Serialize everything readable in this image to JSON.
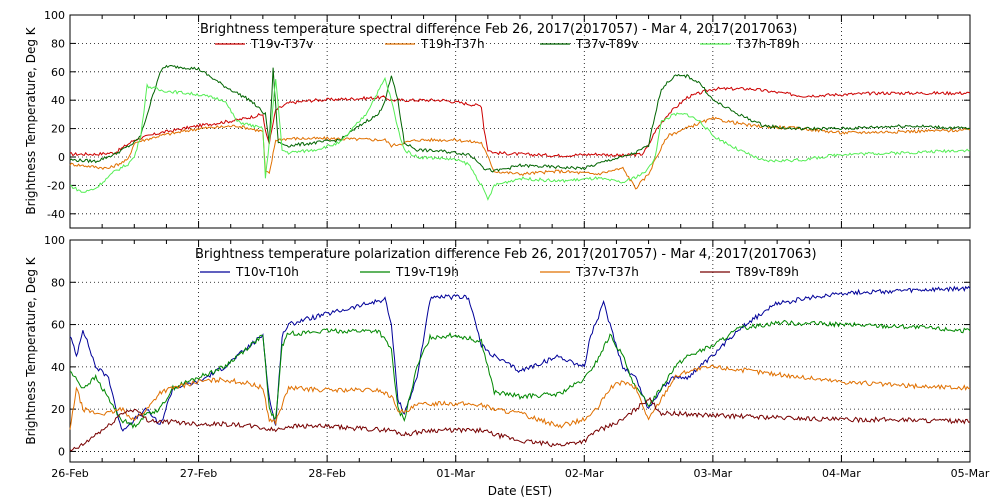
{
  "chart_data": [
    {
      "type": "line",
      "title": "Brightness temperature spectral difference     Feb 26, 2017(2017057) - Mar  4, 2017(2017063)",
      "ylabel": "Brightness Temperature, Deg K",
      "xlabel": "",
      "ylim": [
        -50,
        100
      ],
      "yticks": [
        -40,
        -20,
        0,
        20,
        40,
        60,
        80,
        100
      ],
      "xlim": [
        0,
        7
      ],
      "grid": true,
      "legend": "top",
      "series": [
        {
          "name": "T19v-T37v",
          "color": "#cc0000",
          "x": [
            0,
            0.2,
            0.35,
            0.5,
            0.7,
            1.0,
            1.3,
            1.5,
            1.52,
            1.55,
            1.6,
            1.7,
            1.9,
            2.2,
            2.45,
            2.5,
            2.55,
            2.6,
            2.9,
            3.2,
            3.22,
            3.25,
            3.3,
            3.5,
            3.8,
            4.1,
            4.3,
            4.45,
            4.5,
            4.55,
            4.65,
            4.8,
            5.0,
            5.3,
            5.7,
            6.0,
            6.3,
            6.7,
            7.0
          ],
          "values": [
            2,
            2,
            3,
            12,
            17,
            22,
            26,
            30,
            18,
            10,
            33,
            38,
            40,
            41,
            42,
            40,
            40,
            40,
            40,
            36,
            20,
            5,
            3,
            2,
            1,
            2,
            1,
            2,
            8,
            18,
            30,
            42,
            48,
            48,
            43,
            44,
            45,
            45,
            45
          ]
        },
        {
          "name": "T19h-T37h",
          "color": "#e07000",
          "x": [
            0,
            0.3,
            0.45,
            0.5,
            0.7,
            1.0,
            1.3,
            1.5,
            1.52,
            1.55,
            1.6,
            1.7,
            2.0,
            2.45,
            2.5,
            2.7,
            3.0,
            3.2,
            3.3,
            3.5,
            3.8,
            4.1,
            4.3,
            4.4,
            4.5,
            4.55,
            4.65,
            4.9,
            5.0,
            5.3,
            5.7,
            6.0,
            6.5,
            7.0
          ],
          "values": [
            -5,
            -8,
            -2,
            10,
            15,
            20,
            22,
            18,
            -10,
            -12,
            12,
            13,
            13,
            12,
            8,
            12,
            12,
            10,
            -10,
            -12,
            -10,
            -12,
            -8,
            -22,
            -12,
            -2,
            15,
            24,
            27,
            22,
            20,
            17,
            18,
            19
          ]
        },
        {
          "name": "T37v-T89v",
          "color": "#006400",
          "x": [
            0,
            0.2,
            0.35,
            0.5,
            0.55,
            0.6,
            0.7,
            0.75,
            0.9,
            1.0,
            1.2,
            1.4,
            1.52,
            1.55,
            1.58,
            1.62,
            1.7,
            1.9,
            2.1,
            2.3,
            2.4,
            2.45,
            2.5,
            2.55,
            2.6,
            2.7,
            2.9,
            3.0,
            3.1,
            3.2,
            3.22,
            3.3,
            3.5,
            4.0,
            4.2,
            4.3,
            4.4,
            4.5,
            4.55,
            4.6,
            4.7,
            4.8,
            4.9,
            5.0,
            5.2,
            5.4,
            5.6,
            6.0,
            6.5,
            7.0
          ],
          "values": [
            -2,
            -3,
            2,
            10,
            15,
            30,
            60,
            64,
            63,
            62,
            50,
            40,
            30,
            10,
            62,
            10,
            8,
            10,
            12,
            25,
            30,
            40,
            57,
            40,
            10,
            5,
            4,
            3,
            2,
            -5,
            -8,
            -10,
            -6,
            -8,
            -2,
            0,
            3,
            8,
            30,
            48,
            57,
            57,
            52,
            40,
            30,
            22,
            20,
            20,
            22,
            20
          ]
        },
        {
          "name": "T37h-T89h",
          "color": "#55ee55",
          "x": [
            0,
            0.1,
            0.2,
            0.35,
            0.45,
            0.5,
            0.55,
            0.6,
            0.7,
            1.0,
            1.2,
            1.3,
            1.5,
            1.52,
            1.55,
            1.6,
            1.65,
            1.7,
            1.9,
            2.1,
            2.3,
            2.45,
            2.5,
            2.55,
            2.6,
            2.7,
            2.9,
            3.0,
            3.1,
            3.2,
            3.25,
            3.3,
            3.5,
            3.8,
            4.1,
            4.3,
            4.45,
            4.5,
            4.55,
            4.6,
            4.7,
            4.8,
            4.9,
            5.0,
            5.2,
            5.4,
            5.7,
            6.0,
            6.5,
            7.0
          ],
          "values": [
            -20,
            -25,
            -22,
            -10,
            -5,
            0,
            15,
            50,
            47,
            44,
            40,
            25,
            20,
            -15,
            10,
            55,
            5,
            3,
            5,
            10,
            30,
            55,
            40,
            20,
            5,
            0,
            -1,
            -2,
            -5,
            -20,
            -30,
            -20,
            -15,
            -17,
            -15,
            -18,
            -12,
            -8,
            0,
            25,
            30,
            30,
            25,
            15,
            5,
            -3,
            -2,
            2,
            3,
            5
          ]
        }
      ]
    },
    {
      "type": "line",
      "title": "Brightness temperature polarization difference     Feb 26, 2017(2017057) - Mar  4, 2017(2017063)",
      "ylabel": "Brightness Temperature, Deg K",
      "xlabel": "Date (EST)",
      "ylim": [
        -5,
        100
      ],
      "yticks": [
        0,
        20,
        40,
        60,
        80,
        100
      ],
      "xlim": [
        0,
        7
      ],
      "xticks": [
        "26-Feb",
        "27-Feb",
        "28-Feb",
        "01-Mar",
        "02-Mar",
        "03-Mar",
        "04-Mar",
        "05-Mar"
      ],
      "grid": true,
      "legend": "top",
      "series": [
        {
          "name": "T10v-T10h",
          "color": "#000099",
          "x": [
            0,
            0.05,
            0.1,
            0.2,
            0.3,
            0.4,
            0.5,
            0.6,
            0.7,
            0.8,
            1.0,
            1.2,
            1.4,
            1.5,
            1.55,
            1.6,
            1.65,
            1.7,
            1.8,
            2.0,
            2.2,
            2.45,
            2.5,
            2.55,
            2.6,
            2.7,
            2.8,
            2.9,
            3.0,
            3.1,
            3.2,
            3.3,
            3.5,
            3.8,
            4.0,
            4.05,
            4.1,
            4.15,
            4.2,
            4.3,
            4.4,
            4.5,
            4.6,
            4.7,
            4.8,
            5.0,
            5.2,
            5.5,
            6.0,
            6.5,
            7.0
          ],
          "values": [
            55,
            45,
            58,
            40,
            35,
            10,
            15,
            20,
            12,
            30,
            33,
            40,
            50,
            55,
            25,
            12,
            55,
            60,
            62,
            65,
            68,
            72,
            60,
            25,
            18,
            35,
            72,
            73,
            73,
            73,
            50,
            45,
            38,
            45,
            40,
            55,
            62,
            70,
            60,
            40,
            35,
            20,
            30,
            35,
            35,
            45,
            58,
            70,
            75,
            76,
            77
          ]
        },
        {
          "name": "T19v-T19h",
          "color": "#008800",
          "x": [
            0,
            0.1,
            0.2,
            0.3,
            0.4,
            0.5,
            0.6,
            0.7,
            0.8,
            1.0,
            1.2,
            1.4,
            1.5,
            1.55,
            1.6,
            1.65,
            1.7,
            1.8,
            2.0,
            2.4,
            2.5,
            2.55,
            2.6,
            2.7,
            2.8,
            3.0,
            3.2,
            3.25,
            3.3,
            3.5,
            3.8,
            4.0,
            4.1,
            4.2,
            4.3,
            4.4,
            4.5,
            4.6,
            4.7,
            4.8,
            5.0,
            5.2,
            5.5,
            6.0,
            6.5,
            7.0
          ],
          "values": [
            38,
            30,
            35,
            25,
            15,
            12,
            18,
            20,
            30,
            35,
            40,
            50,
            55,
            20,
            15,
            50,
            56,
            56,
            57,
            57,
            48,
            20,
            15,
            40,
            54,
            55,
            52,
            40,
            28,
            26,
            27,
            34,
            43,
            55,
            45,
            30,
            22,
            30,
            40,
            45,
            50,
            58,
            61,
            60,
            59,
            57
          ]
        },
        {
          "name": "T37v-T37h",
          "color": "#e07000",
          "x": [
            0,
            0.05,
            0.1,
            0.2,
            0.3,
            0.4,
            0.5,
            0.6,
            0.7,
            0.8,
            1.0,
            1.2,
            1.4,
            1.5,
            1.55,
            1.6,
            1.7,
            2.0,
            2.4,
            2.5,
            2.55,
            2.6,
            2.7,
            2.9,
            3.2,
            3.3,
            3.5,
            3.8,
            4.0,
            4.1,
            4.2,
            4.3,
            4.4,
            4.5,
            4.6,
            4.7,
            4.8,
            5.0,
            5.3,
            5.7,
            6.0,
            6.5,
            7.0
          ],
          "values": [
            10,
            30,
            20,
            18,
            18,
            20,
            15,
            20,
            28,
            30,
            33,
            34,
            32,
            30,
            15,
            14,
            30,
            29,
            29,
            26,
            20,
            18,
            22,
            23,
            22,
            20,
            18,
            12,
            15,
            20,
            30,
            33,
            30,
            15,
            25,
            35,
            38,
            40,
            38,
            35,
            33,
            31,
            30
          ]
        },
        {
          "name": "T89v-T89h",
          "color": "#770000",
          "x": [
            0,
            0.1,
            0.2,
            0.3,
            0.4,
            0.5,
            0.6,
            0.7,
            0.8,
            1.0,
            1.2,
            1.4,
            1.5,
            1.6,
            1.7,
            1.9,
            2.2,
            2.5,
            2.6,
            2.8,
            3.0,
            3.2,
            3.3,
            3.5,
            3.8,
            4.0,
            4.1,
            4.2,
            4.3,
            4.4,
            4.5,
            4.6,
            4.7,
            5.0,
            5.5,
            6.0,
            6.5,
            7.0
          ],
          "values": [
            0,
            3,
            8,
            12,
            18,
            20,
            15,
            14,
            14,
            13,
            13,
            12,
            11,
            10,
            12,
            12,
            11,
            10,
            8,
            10,
            10,
            10,
            8,
            5,
            3,
            5,
            10,
            12,
            15,
            20,
            25,
            18,
            18,
            17,
            16,
            15,
            15,
            14
          ]
        }
      ]
    }
  ]
}
